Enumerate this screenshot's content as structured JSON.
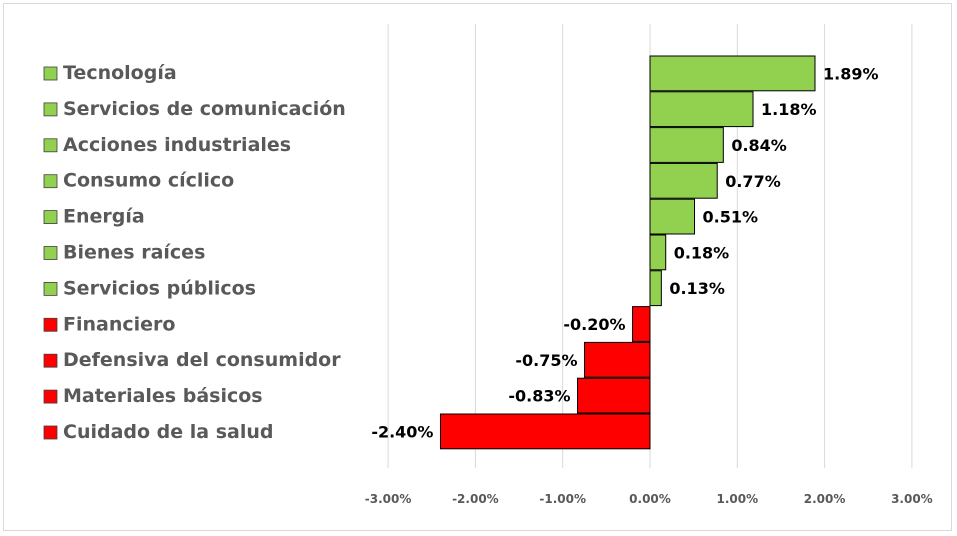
{
  "chart_data": {
    "type": "bar",
    "orientation": "horizontal",
    "title": "",
    "xlabel": "",
    "ylabel": "",
    "xlim": [
      -3.0,
      3.0
    ],
    "x_ticks": [
      -3.0,
      -2.0,
      -1.0,
      0.0,
      1.0,
      2.0,
      3.0
    ],
    "x_tick_labels": [
      "-3.00%",
      "-2.00%",
      "-1.00%",
      "0.00%",
      "1.00%",
      "2.00%",
      "3.00%"
    ],
    "grid": true,
    "legend_position": "left",
    "categories": [
      "Tecnología",
      "Servicios de comunicación",
      "Acciones industriales",
      "Consumo cíclico",
      "Energía",
      "Bienes raíces",
      "Servicios públicos",
      "Financiero",
      "Defensiva del consumidor",
      "Materiales básicos",
      "Cuidado de la salud"
    ],
    "values": [
      1.89,
      1.18,
      0.84,
      0.77,
      0.51,
      0.18,
      0.13,
      -0.2,
      -0.75,
      -0.83,
      -2.4
    ],
    "data_labels": [
      "1.89%",
      "1.18%",
      "0.84%",
      "0.77%",
      "0.51%",
      "0.18%",
      "0.13%",
      "-0.20%",
      "-0.75%",
      "-0.83%",
      "-2.40%"
    ],
    "colors": {
      "positive": "#92d050",
      "negative": "#ff0000",
      "bar_border": "#000000",
      "grid": "#d9d9d9"
    }
  }
}
